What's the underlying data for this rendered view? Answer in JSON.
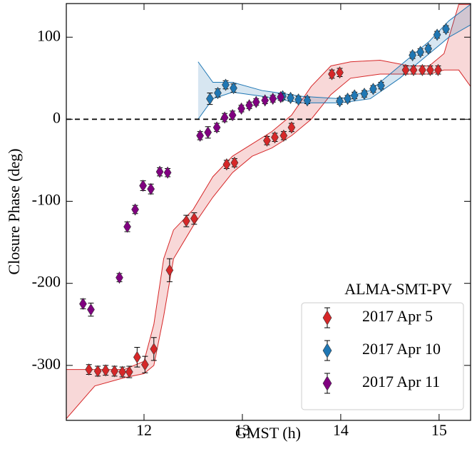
{
  "chart_data": {
    "type": "scatter",
    "xlabel": "GMST (h)",
    "ylabel": "Closure Phase (deg)",
    "legend_title": "ALMA-SMT-PV",
    "legend": "lower right",
    "xlim": [
      11.21,
      15.32
    ],
    "ylim": [
      -367,
      141
    ],
    "xticks": [
      12,
      13,
      14,
      15
    ],
    "yticks": [
      -300,
      -200,
      -100,
      0,
      100
    ],
    "hline": 0,
    "series": [
      {
        "name": "2017 Apr 5",
        "color": "#d62728",
        "x": [
          11.44,
          11.53,
          11.61,
          11.7,
          11.78,
          11.85,
          11.93,
          12.01,
          12.1,
          12.26,
          12.43,
          12.51,
          12.84,
          12.92,
          13.25,
          13.33,
          13.42,
          13.5,
          13.91,
          13.99,
          14.66,
          14.74,
          14.83,
          14.91,
          14.99
        ],
        "values": [
          -305,
          -307,
          -306,
          -307,
          -308,
          -308,
          -290,
          -299,
          -280,
          -184,
          -124,
          -121,
          -55,
          -53,
          -26,
          -22,
          -20,
          -10,
          55,
          57,
          60,
          60,
          60,
          60,
          60
        ],
        "errors": [
          6,
          6,
          6,
          6,
          6,
          7,
          12,
          10,
          14,
          14,
          7,
          7,
          5,
          5,
          5,
          5,
          5,
          5,
          5,
          5,
          5,
          5,
          5,
          5,
          5
        ]
      },
      {
        "name": "2017 Apr 10",
        "color": "#1f77b4",
        "x": [
          12.67,
          12.75,
          12.83,
          12.91,
          13.41,
          13.49,
          13.57,
          13.66,
          13.99,
          14.07,
          14.14,
          14.24,
          14.33,
          14.41,
          14.73,
          14.81,
          14.89,
          14.98,
          15.07
        ],
        "values": [
          25,
          32,
          42,
          38,
          28,
          26,
          24,
          23,
          22,
          25,
          29,
          31,
          37,
          41,
          78,
          82,
          86,
          103,
          110
        ],
        "errors": [
          7,
          5,
          5,
          5,
          4,
          4,
          4,
          4,
          4,
          4,
          4,
          4,
          4,
          4,
          4,
          4,
          4,
          4,
          4
        ]
      },
      {
        "name": "2017 Apr 11",
        "color": "#800080",
        "x": [
          11.38,
          11.46,
          11.75,
          11.83,
          11.91,
          11.99,
          12.07,
          12.16,
          12.24,
          12.57,
          12.65,
          12.74,
          12.82,
          12.9,
          12.99,
          13.07,
          13.14,
          13.23,
          13.31,
          13.39
        ],
        "values": [
          -225,
          -232,
          -193,
          -131,
          -110,
          -81,
          -85,
          -64,
          -65,
          -20,
          -16,
          -10,
          2,
          5,
          13,
          17,
          21,
          23,
          25,
          27
        ],
        "errors": [
          6,
          8,
          5,
          6,
          5,
          6,
          6,
          5,
          5,
          5,
          7,
          5,
          5,
          5,
          4,
          4,
          4,
          4,
          4,
          4
        ]
      }
    ],
    "bands": [
      {
        "color": "#d62728",
        "x": [
          11.21,
          11.5,
          11.8,
          12.0,
          12.1,
          12.2,
          12.3,
          12.5,
          12.7,
          12.9,
          13.1,
          13.3,
          13.5,
          13.7,
          13.9,
          14.1,
          14.4,
          14.7,
          14.9,
          15.05,
          15.2,
          15.32
        ],
        "lower": [
          -365,
          -325,
          -315,
          -310,
          -300,
          -240,
          -170,
          -130,
          -95,
          -65,
          -45,
          -35,
          -20,
          0,
          30,
          50,
          55,
          55,
          55,
          60,
          60,
          40
        ],
        "upper": [
          -305,
          -305,
          -305,
          -295,
          -250,
          -170,
          -135,
          -110,
          -70,
          -45,
          -30,
          -15,
          5,
          40,
          65,
          70,
          72,
          65,
          65,
          80,
          140,
          140
        ]
      },
      {
        "color": "#1f77b4",
        "x": [
          12.55,
          12.7,
          12.9,
          13.2,
          13.6,
          14.0,
          14.3,
          14.6,
          14.9,
          15.1,
          15.32
        ],
        "lower": [
          0,
          25,
          33,
          28,
          20,
          20,
          25,
          50,
          80,
          100,
          115
        ],
        "upper": [
          70,
          45,
          45,
          35,
          28,
          25,
          35,
          65,
          95,
          120,
          140
        ]
      }
    ]
  }
}
